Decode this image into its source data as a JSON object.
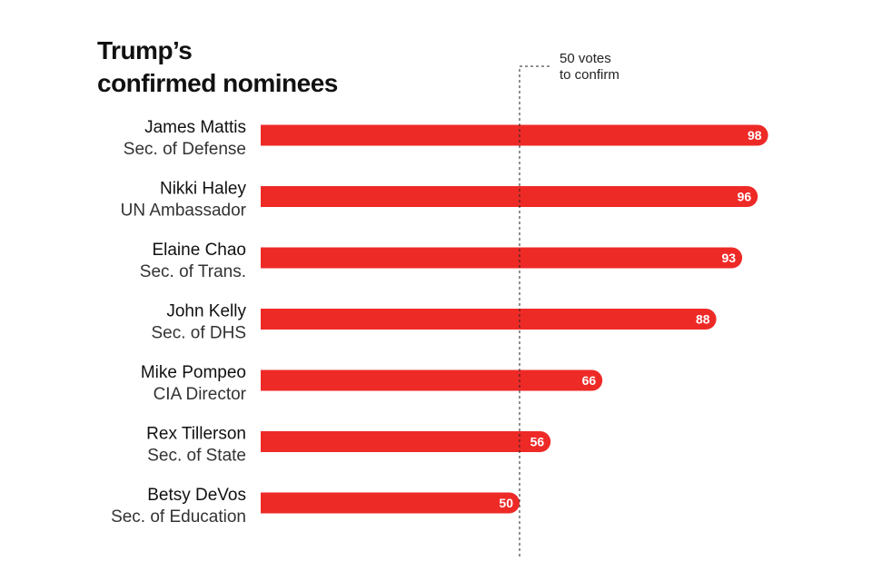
{
  "chart_data": {
    "type": "bar",
    "orientation": "horizontal",
    "title": "Trump’s confirmed nominees",
    "title_lines": [
      "Trump’s",
      "confirmed nominees"
    ],
    "categories": [
      {
        "name": "James Mattis",
        "role": "Sec. of Defense"
      },
      {
        "name": "Nikki Haley",
        "role": "UN Ambassador"
      },
      {
        "name": "Elaine Chao",
        "role": "Sec. of Trans."
      },
      {
        "name": "John Kelly",
        "role": "Sec. of DHS"
      },
      {
        "name": "Mike Pompeo",
        "role": "CIA Director"
      },
      {
        "name": "Rex Tillerson",
        "role": "Sec. of State"
      },
      {
        "name": "Betsy DeVos",
        "role": "Sec. of Education"
      }
    ],
    "values": [
      98,
      96,
      93,
      88,
      66,
      56,
      50
    ],
    "xlim": [
      0,
      100
    ],
    "reference_line": {
      "value": 50,
      "label_lines": [
        "50 votes",
        "to confirm"
      ]
    },
    "bar_color": "#ee2a27",
    "grid": false,
    "legend": "none"
  }
}
